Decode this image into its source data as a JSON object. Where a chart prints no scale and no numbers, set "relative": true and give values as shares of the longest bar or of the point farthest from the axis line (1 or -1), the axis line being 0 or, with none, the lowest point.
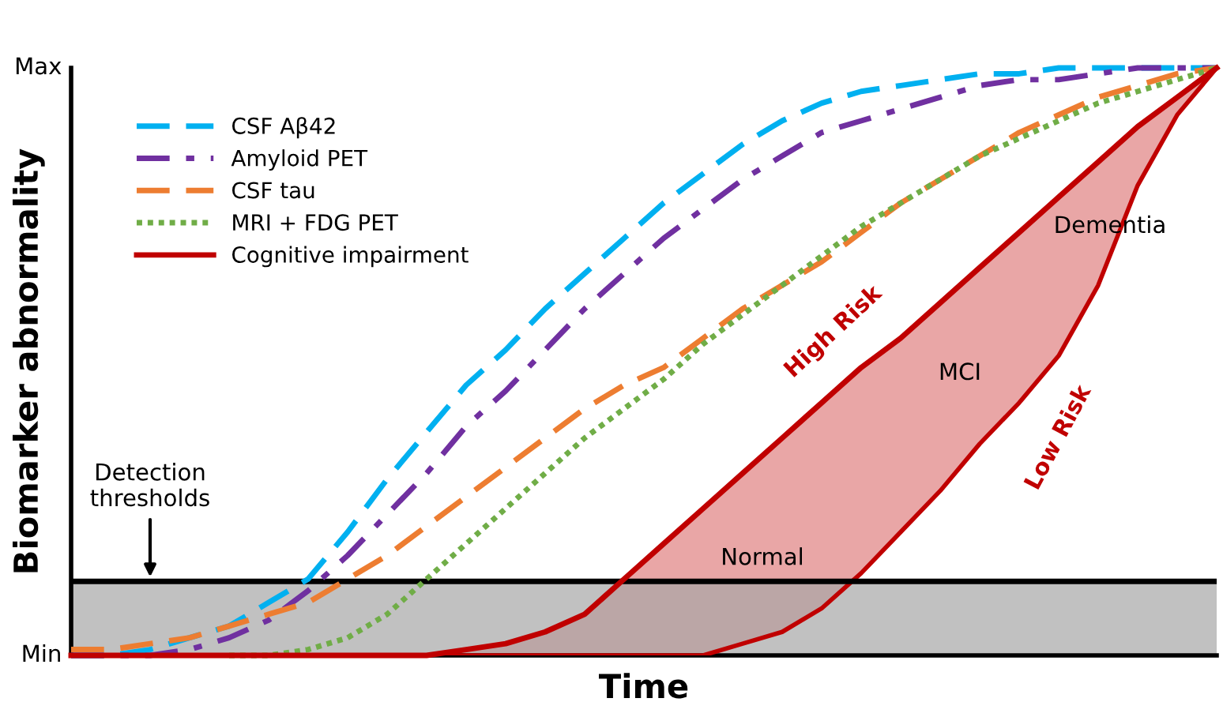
{
  "chart_data": {
    "type": "line",
    "xlabel": "Time",
    "ylabel": "Biomarker abnormality",
    "categories": [
      null,
      null,
      null,
      null,
      null,
      null,
      null,
      null,
      null,
      null,
      null,
      null,
      null,
      null,
      null,
      null,
      null,
      null,
      null,
      null,
      null,
      null,
      null,
      null,
      null,
      null,
      null,
      null,
      null,
      null
    ],
    "relative": true,
    "tick_labels": false,
    "grid": false,
    "legend": "top left",
    "series": [
      {
        "name": "CSF Aβ42",
        "color": "#00b0f0",
        "line_style": "dashed",
        "values": [
          0,
          0,
          0.01,
          0.03,
          0.05,
          0.09,
          0.13,
          0.21,
          0.3,
          0.38,
          0.46,
          0.52,
          0.59,
          0.65,
          0.71,
          0.77,
          0.82,
          0.87,
          0.91,
          0.94,
          0.96,
          0.97,
          0.98,
          0.99,
          0.99,
          1,
          1,
          1,
          1,
          1
        ]
      },
      {
        "name": "Amyloid PET",
        "color": "#7030a0",
        "line_style": "dashdot",
        "values": [
          0,
          0,
          0,
          0.01,
          0.03,
          0.06,
          0.11,
          0.17,
          0.24,
          0.31,
          0.39,
          0.45,
          0.52,
          0.59,
          0.65,
          0.71,
          0.76,
          0.81,
          0.85,
          0.89,
          0.91,
          0.93,
          0.95,
          0.97,
          0.98,
          0.98,
          0.99,
          1,
          1,
          1
        ]
      },
      {
        "name": "CSF tau",
        "color": "#ed7d31",
        "line_style": "dashed",
        "values": [
          0.01,
          0.01,
          0.02,
          0.03,
          0.05,
          0.07,
          0.09,
          0.13,
          0.17,
          0.22,
          0.27,
          0.32,
          0.37,
          0.42,
          0.46,
          0.49,
          0.54,
          0.59,
          0.63,
          0.67,
          0.72,
          0.77,
          0.81,
          0.85,
          0.89,
          0.92,
          0.95,
          0.97,
          0.99,
          1
        ]
      },
      {
        "name": "MRI + FDG PET",
        "color": "#70ad47",
        "line_style": "dotted",
        "values": [
          null,
          null,
          null,
          null,
          0,
          0,
          0.01,
          0.03,
          0.07,
          0.13,
          0.19,
          0.25,
          0.31,
          0.37,
          0.42,
          0.47,
          0.53,
          0.58,
          0.63,
          0.68,
          0.73,
          0.77,
          0.81,
          0.85,
          0.88,
          0.91,
          0.94,
          0.96,
          0.98,
          1
        ]
      },
      {
        "name": "Cognitive impairment",
        "color": "#c00000",
        "line_style": "solid",
        "values": [
          0,
          0,
          0,
          0,
          0,
          0,
          0,
          0,
          0,
          0,
          0.01,
          0.02,
          0.04,
          0.07,
          0.13,
          0.19,
          0.25,
          0.31,
          0.37,
          0.43,
          0.49,
          0.54,
          0.6,
          0.66,
          0.72,
          0.78,
          0.84,
          0.9,
          0.95,
          1
        ],
        "lower": [
          0,
          0,
          0,
          0,
          0,
          0,
          0,
          0,
          0,
          0,
          0,
          0,
          0,
          0,
          0,
          0,
          0,
          0.02,
          0.04,
          0.08,
          0.14,
          0.21,
          0.28,
          0.36,
          0.43,
          0.51,
          0.63,
          0.8,
          0.92,
          1
        ],
        "upper": [
          0,
          0,
          0,
          0,
          0,
          0,
          0,
          0,
          0,
          0,
          0.01,
          0.02,
          0.04,
          0.07,
          0.13,
          0.19,
          0.25,
          0.31,
          0.37,
          0.43,
          0.49,
          0.54,
          0.6,
          0.66,
          0.72,
          0.78,
          0.84,
          0.9,
          0.95,
          1
        ]
      }
    ],
    "bands": [
      {
        "axis": "y",
        "from": 0,
        "to": 0.126,
        "color": "#a6a6a6"
      }
    ],
    "ref_lines": [
      {
        "axis": "y",
        "value": 0.126,
        "label": "Detection\nthresholds",
        "color": "#000000"
      }
    ],
    "annotations": [
      "High Risk",
      "Low Risk",
      "MCI",
      "Dementia",
      "Normal",
      "Min",
      "Max"
    ]
  }
}
